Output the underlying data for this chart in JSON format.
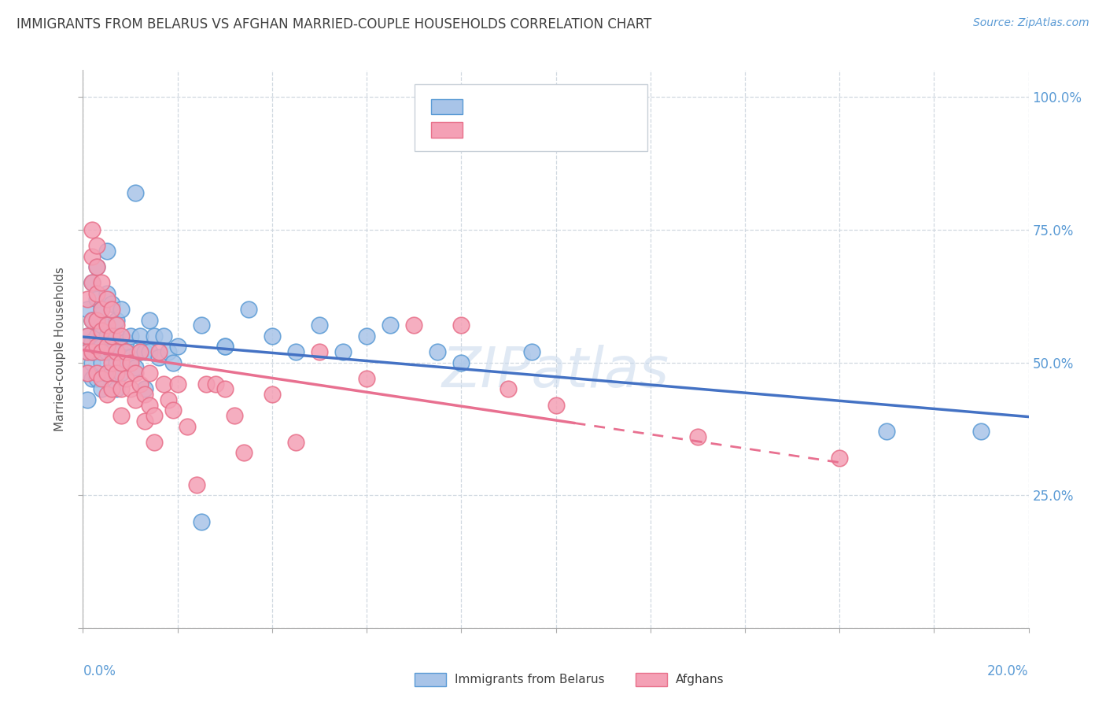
{
  "title": "IMMIGRANTS FROM BELARUS VS AFGHAN MARRIED-COUPLE HOUSEHOLDS CORRELATION CHART",
  "source": "Source: ZipAtlas.com",
  "ylabel": "Married-couple Households",
  "x_range": [
    0.0,
    0.2
  ],
  "y_range": [
    0.0,
    1.05
  ],
  "watermark": "ZIPatlas",
  "blue_color": "#a8c4e8",
  "pink_color": "#f4a0b5",
  "blue_edge_color": "#5b9bd5",
  "pink_edge_color": "#e8708a",
  "blue_line_color": "#4472c4",
  "pink_line_color": "#e87090",
  "title_color": "#404040",
  "axis_label_color": "#5b9bd5",
  "grid_color": "#d0d8e0",
  "scatter_blue": [
    [
      0.001,
      0.52
    ],
    [
      0.001,
      0.6
    ],
    [
      0.001,
      0.55
    ],
    [
      0.001,
      0.48
    ],
    [
      0.001,
      0.43
    ],
    [
      0.002,
      0.58
    ],
    [
      0.002,
      0.65
    ],
    [
      0.002,
      0.5
    ],
    [
      0.002,
      0.54
    ],
    [
      0.002,
      0.47
    ],
    [
      0.002,
      0.52
    ],
    [
      0.003,
      0.62
    ],
    [
      0.003,
      0.58
    ],
    [
      0.003,
      0.52
    ],
    [
      0.003,
      0.47
    ],
    [
      0.003,
      0.68
    ],
    [
      0.003,
      0.55
    ],
    [
      0.004,
      0.55
    ],
    [
      0.004,
      0.6
    ],
    [
      0.004,
      0.5
    ],
    [
      0.004,
      0.53
    ],
    [
      0.004,
      0.45
    ],
    [
      0.004,
      0.57
    ],
    [
      0.005,
      0.57
    ],
    [
      0.005,
      0.52
    ],
    [
      0.005,
      0.63
    ],
    [
      0.005,
      0.48
    ],
    [
      0.005,
      0.71
    ],
    [
      0.005,
      0.55
    ],
    [
      0.006,
      0.55
    ],
    [
      0.006,
      0.52
    ],
    [
      0.006,
      0.48
    ],
    [
      0.006,
      0.61
    ],
    [
      0.007,
      0.55
    ],
    [
      0.007,
      0.5
    ],
    [
      0.007,
      0.58
    ],
    [
      0.007,
      0.45
    ],
    [
      0.008,
      0.6
    ],
    [
      0.008,
      0.52
    ],
    [
      0.008,
      0.48
    ],
    [
      0.009,
      0.54
    ],
    [
      0.009,
      0.5
    ],
    [
      0.01,
      0.51
    ],
    [
      0.01,
      0.55
    ],
    [
      0.011,
      0.49
    ],
    [
      0.011,
      0.82
    ],
    [
      0.012,
      0.55
    ],
    [
      0.012,
      0.52
    ],
    [
      0.013,
      0.52
    ],
    [
      0.013,
      0.45
    ],
    [
      0.014,
      0.58
    ],
    [
      0.014,
      0.52
    ],
    [
      0.015,
      0.55
    ],
    [
      0.016,
      0.51
    ],
    [
      0.017,
      0.55
    ],
    [
      0.018,
      0.52
    ],
    [
      0.019,
      0.5
    ],
    [
      0.02,
      0.53
    ],
    [
      0.025,
      0.57
    ],
    [
      0.025,
      0.2
    ],
    [
      0.03,
      0.53
    ],
    [
      0.03,
      0.53
    ],
    [
      0.035,
      0.6
    ],
    [
      0.04,
      0.55
    ],
    [
      0.045,
      0.52
    ],
    [
      0.05,
      0.57
    ],
    [
      0.055,
      0.52
    ],
    [
      0.06,
      0.55
    ],
    [
      0.065,
      0.57
    ],
    [
      0.075,
      0.52
    ],
    [
      0.08,
      0.5
    ],
    [
      0.095,
      0.52
    ],
    [
      0.17,
      0.37
    ],
    [
      0.19,
      0.37
    ]
  ],
  "scatter_pink": [
    [
      0.001,
      0.55
    ],
    [
      0.001,
      0.62
    ],
    [
      0.001,
      0.48
    ],
    [
      0.001,
      0.52
    ],
    [
      0.002,
      0.7
    ],
    [
      0.002,
      0.75
    ],
    [
      0.002,
      0.65
    ],
    [
      0.002,
      0.58
    ],
    [
      0.002,
      0.52
    ],
    [
      0.003,
      0.72
    ],
    [
      0.003,
      0.68
    ],
    [
      0.003,
      0.63
    ],
    [
      0.003,
      0.58
    ],
    [
      0.003,
      0.53
    ],
    [
      0.003,
      0.48
    ],
    [
      0.004,
      0.65
    ],
    [
      0.004,
      0.6
    ],
    [
      0.004,
      0.56
    ],
    [
      0.004,
      0.52
    ],
    [
      0.004,
      0.47
    ],
    [
      0.005,
      0.62
    ],
    [
      0.005,
      0.57
    ],
    [
      0.005,
      0.53
    ],
    [
      0.005,
      0.48
    ],
    [
      0.005,
      0.44
    ],
    [
      0.006,
      0.6
    ],
    [
      0.006,
      0.55
    ],
    [
      0.006,
      0.5
    ],
    [
      0.006,
      0.45
    ],
    [
      0.007,
      0.57
    ],
    [
      0.007,
      0.52
    ],
    [
      0.007,
      0.48
    ],
    [
      0.008,
      0.55
    ],
    [
      0.008,
      0.5
    ],
    [
      0.008,
      0.45
    ],
    [
      0.008,
      0.4
    ],
    [
      0.009,
      0.52
    ],
    [
      0.009,
      0.47
    ],
    [
      0.01,
      0.5
    ],
    [
      0.01,
      0.45
    ],
    [
      0.011,
      0.48
    ],
    [
      0.011,
      0.43
    ],
    [
      0.012,
      0.46
    ],
    [
      0.012,
      0.52
    ],
    [
      0.013,
      0.44
    ],
    [
      0.013,
      0.39
    ],
    [
      0.014,
      0.42
    ],
    [
      0.014,
      0.48
    ],
    [
      0.015,
      0.4
    ],
    [
      0.015,
      0.35
    ],
    [
      0.016,
      0.52
    ],
    [
      0.017,
      0.46
    ],
    [
      0.018,
      0.43
    ],
    [
      0.019,
      0.41
    ],
    [
      0.02,
      0.46
    ],
    [
      0.022,
      0.38
    ],
    [
      0.024,
      0.27
    ],
    [
      0.026,
      0.46
    ],
    [
      0.028,
      0.46
    ],
    [
      0.03,
      0.45
    ],
    [
      0.032,
      0.4
    ],
    [
      0.034,
      0.33
    ],
    [
      0.04,
      0.44
    ],
    [
      0.045,
      0.35
    ],
    [
      0.05,
      0.52
    ],
    [
      0.06,
      0.47
    ],
    [
      0.07,
      0.57
    ],
    [
      0.08,
      0.57
    ],
    [
      0.09,
      0.45
    ],
    [
      0.1,
      0.42
    ],
    [
      0.13,
      0.36
    ],
    [
      0.16,
      0.32
    ]
  ]
}
